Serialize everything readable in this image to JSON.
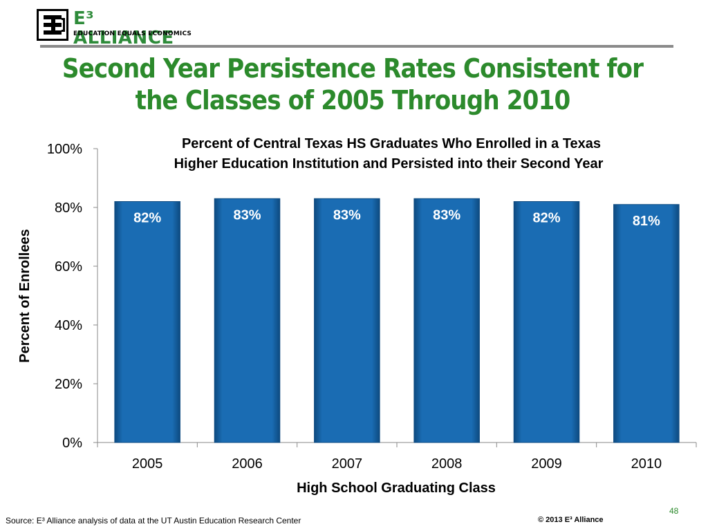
{
  "logo": {
    "name": "E³ ALLIANCE",
    "tagline": "EDUCATION EQUALS ECONOMICS"
  },
  "slide": {
    "title": "Second Year Persistence Rates Consistent for the Classes of 2005 Through 2010",
    "page_number": "48"
  },
  "footer": {
    "source": "Source: E³ Alliance analysis of data at the UT Austin Education Research Center",
    "copyright": "© 2013 E³ Alliance"
  },
  "colors": {
    "title_green": "#2c8a2c",
    "bar_blue": "#1565a8",
    "bar_edge": "#0d4a80"
  },
  "chart_data": {
    "type": "bar",
    "title": "Percent of Central Texas HS Graduates Who Enrolled in a Texas Higher Education Institution and Persisted into their Second Year",
    "title_lines": [
      "Percent of Central Texas HS Graduates Who Enrolled in a Texas",
      "Higher Education Institution and Persisted into their Second Year"
    ],
    "categories": [
      "2005",
      "2006",
      "2007",
      "2008",
      "2009",
      "2010"
    ],
    "values": [
      82,
      83,
      83,
      83,
      82,
      81
    ],
    "data_labels": [
      "82%",
      "83%",
      "83%",
      "83%",
      "82%",
      "81%"
    ],
    "xlabel": "High School Graduating Class",
    "ylabel": "Percent of Enrollees",
    "ylim": [
      0,
      100
    ],
    "yticks": [
      "0%",
      "20%",
      "40%",
      "60%",
      "80%",
      "100%"
    ],
    "grid": false,
    "legend": "none"
  }
}
